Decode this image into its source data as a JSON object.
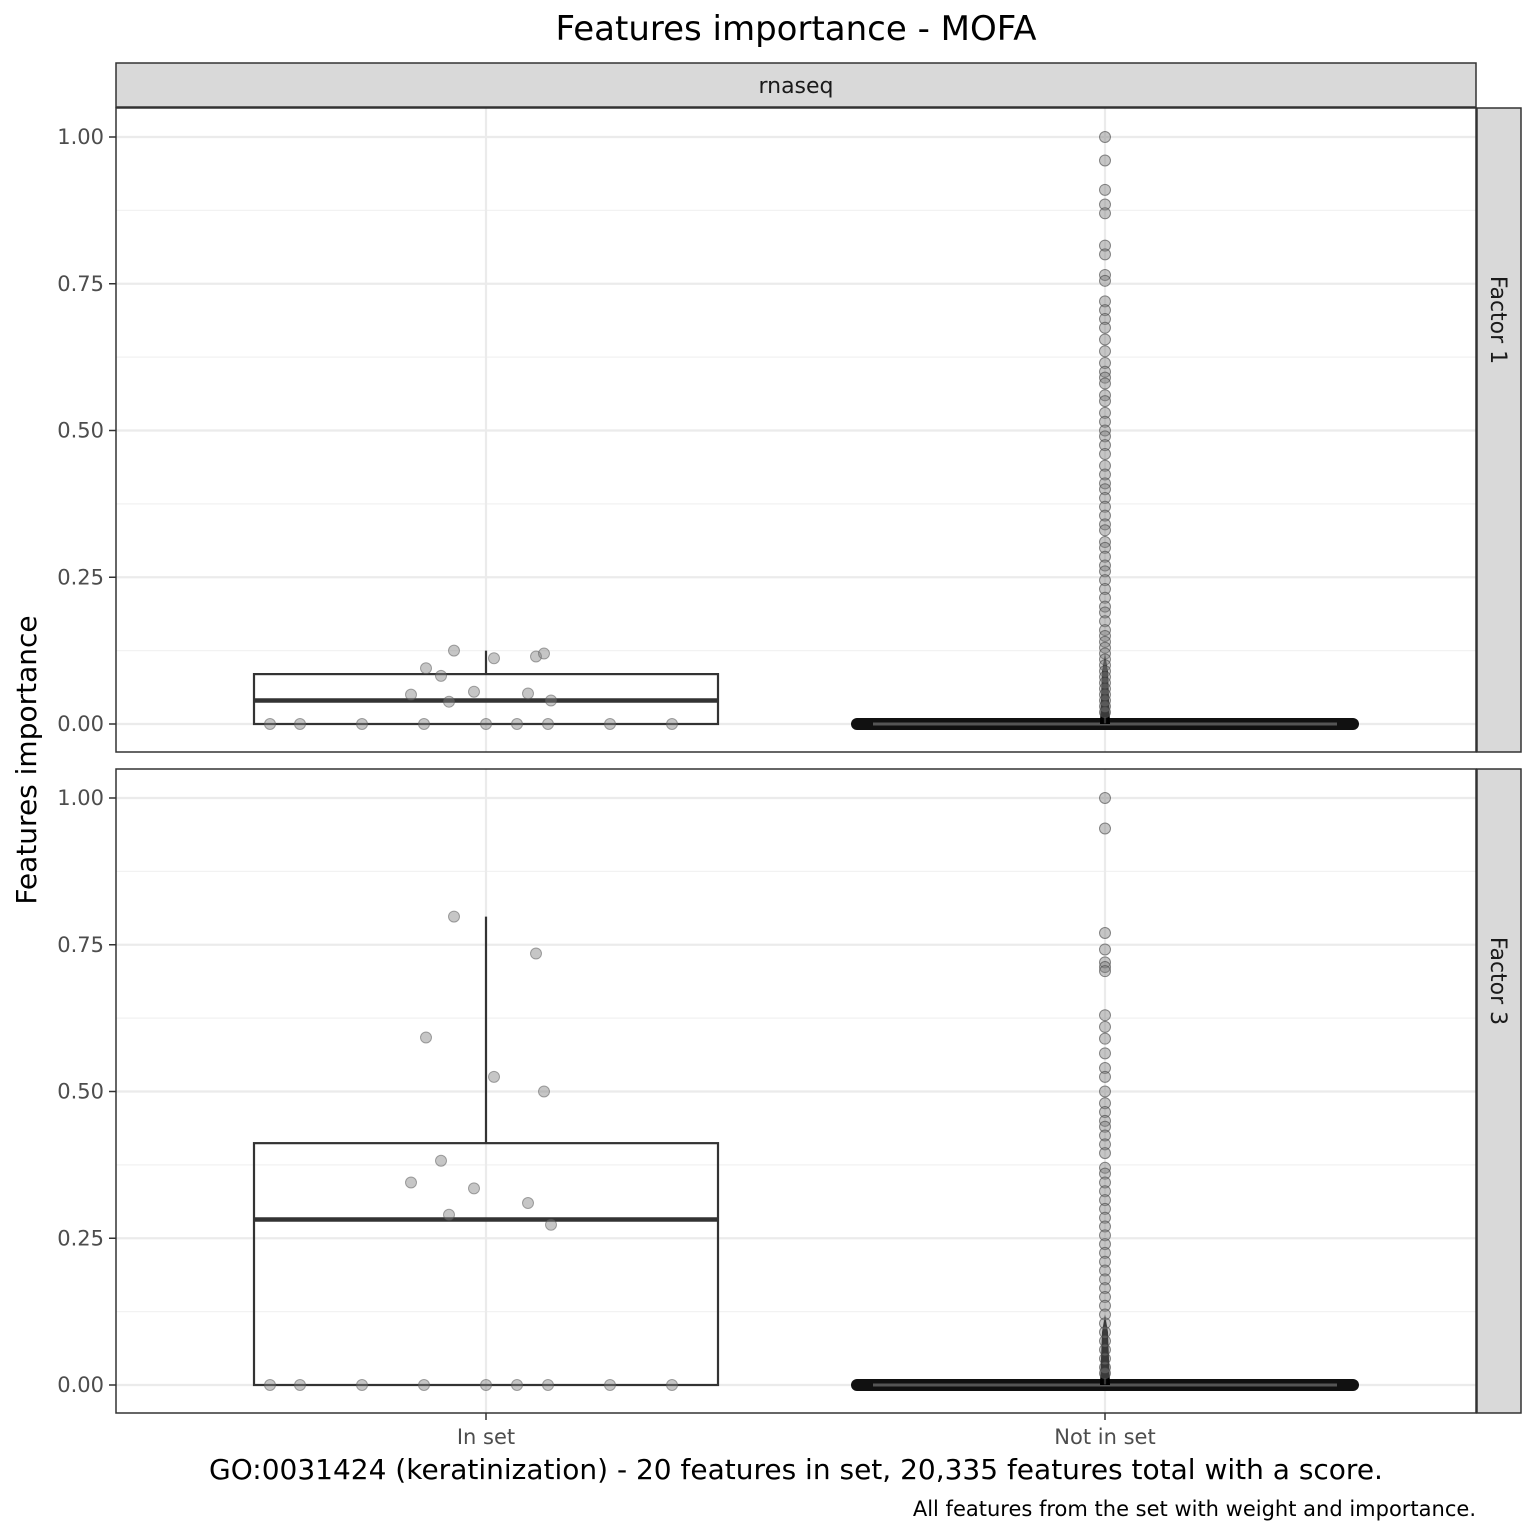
{
  "chart_data": {
    "type": "box",
    "title": "Features importance - MOFA",
    "column_strip": "rnaseq",
    "xlabel": "GO:0031424 (keratinization) - 20 features in set, 20,335 features total with a score.",
    "ylabel": "Features importance",
    "caption": "All features from the set with weight and importance.",
    "categories": [
      "In set",
      "Not in set"
    ],
    "ylim": [
      0,
      1
    ],
    "y_ticks": [
      "0.00",
      "0.25",
      "0.50",
      "0.75",
      "1.00"
    ],
    "y_tick_values": [
      0,
      0.25,
      0.5,
      0.75,
      1.0
    ],
    "grid": true,
    "panels": [
      {
        "row_strip": "Factor 1",
        "in_set": {
          "box": {
            "q1": 0.0,
            "median": 0.04,
            "q3": 0.085,
            "whisker_low": 0.0,
            "whisker_high": 0.125
          },
          "points": [
            0.125,
            0.115,
            0.095,
            0.112,
            0.12,
            0.082,
            0.05,
            0.055,
            0.052,
            0.038,
            0.04,
            0,
            0,
            0,
            0,
            0,
            0,
            0,
            0,
            0
          ]
        },
        "not_in_set": {
          "box": {
            "q1": 0.0,
            "median": 0.0,
            "q3": 0.001,
            "whisker_low": 0.0,
            "whisker_high": 0.012
          },
          "outliers": [
            1.0,
            0.96,
            0.91,
            0.885,
            0.87,
            0.815,
            0.8,
            0.765,
            0.755,
            0.72,
            0.705,
            0.69,
            0.675,
            0.655,
            0.635,
            0.615,
            0.6,
            0.59,
            0.58,
            0.56,
            0.55,
            0.53,
            0.515,
            0.5,
            0.49,
            0.475,
            0.46,
            0.44,
            0.425,
            0.41,
            0.4,
            0.385,
            0.37,
            0.355,
            0.34,
            0.33,
            0.31,
            0.3,
            0.285,
            0.27,
            0.26,
            0.245,
            0.23,
            0.215,
            0.2,
            0.19,
            0.175,
            0.16,
            0.15,
            0.14,
            0.13,
            0.12,
            0.11,
            0.1,
            0.09,
            0.08,
            0.07,
            0.06,
            0.05,
            0.04,
            0.03,
            0.02
          ]
        }
      },
      {
        "row_strip": "Factor 3",
        "in_set": {
          "box": {
            "q1": 0.0,
            "median": 0.282,
            "q3": 0.412,
            "whisker_low": 0.0,
            "whisker_high": 0.798
          },
          "points": [
            0.798,
            0.735,
            0.592,
            0.525,
            0.5,
            0.382,
            0.345,
            0.335,
            0.31,
            0.29,
            0.273,
            0,
            0,
            0,
            0,
            0,
            0,
            0,
            0,
            0
          ]
        },
        "not_in_set": {
          "box": {
            "q1": 0.0,
            "median": 0.0,
            "q3": 0.001,
            "whisker_low": 0.0,
            "whisker_high": 0.012
          },
          "outliers": [
            1.0,
            0.948,
            0.77,
            0.742,
            0.72,
            0.712,
            0.705,
            0.63,
            0.61,
            0.59,
            0.565,
            0.54,
            0.525,
            0.5,
            0.48,
            0.465,
            0.45,
            0.44,
            0.425,
            0.41,
            0.395,
            0.37,
            0.36,
            0.345,
            0.33,
            0.315,
            0.3,
            0.285,
            0.27,
            0.255,
            0.24,
            0.225,
            0.21,
            0.195,
            0.18,
            0.165,
            0.15,
            0.135,
            0.12,
            0.105,
            0.09,
            0.075,
            0.06,
            0.045,
            0.03,
            0.02
          ]
        }
      }
    ],
    "colors": {
      "points": "#808080",
      "box": "#333333",
      "strip": "#d9d9d9",
      "grid": "#ebebeb"
    }
  }
}
